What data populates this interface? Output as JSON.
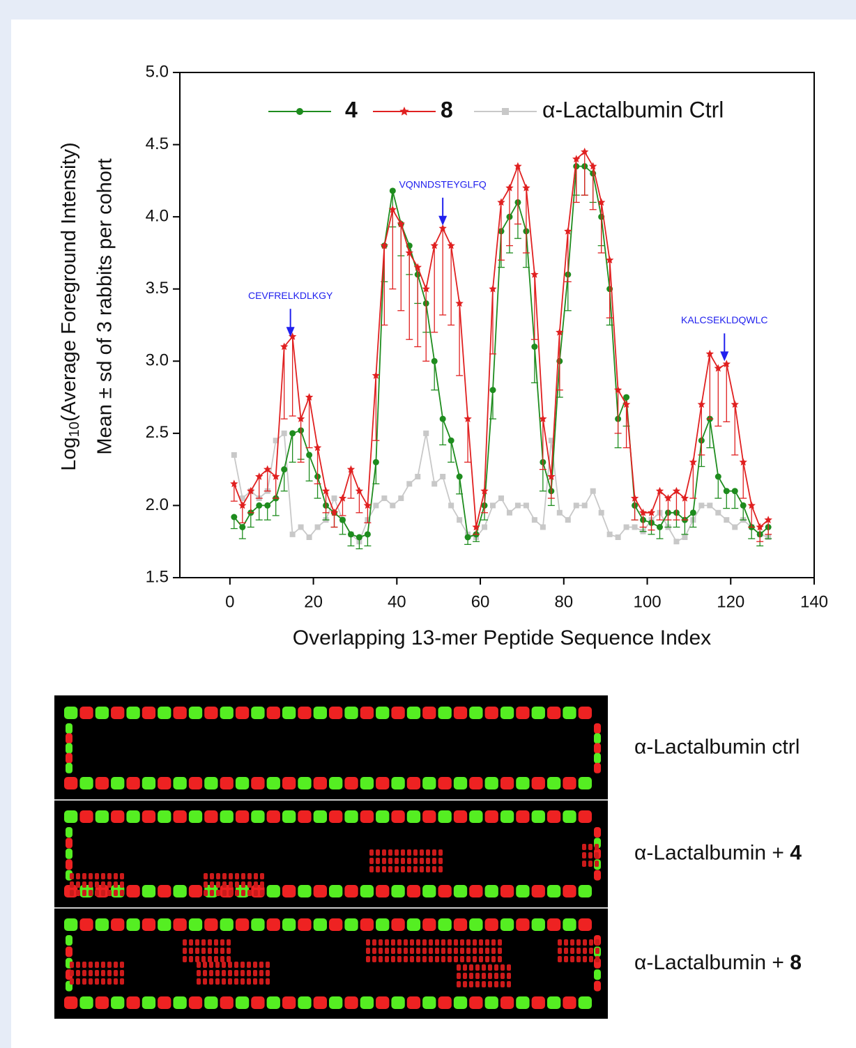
{
  "chart_data": {
    "type": "line",
    "ylabel": [
      "Log",
      "10",
      "(Average Foreground Intensity)"
    ],
    "ylabel2": "Mean ± sd of 3 rabbits per cohort",
    "xlabel": "Overlapping 13-mer Peptide Sequence Index",
    "xlim": [
      -12,
      140
    ],
    "ylim": [
      1.5,
      5.0
    ],
    "xticks": [
      0,
      20,
      40,
      60,
      80,
      100,
      120,
      140
    ],
    "yticks": [
      1.5,
      {
        "value": 2,
        "label": "2.0"
      },
      2.5,
      {
        "value": 3,
        "label": "3.0"
      },
      3.5,
      {
        "value": 4,
        "label": "4.0"
      },
      4.5,
      {
        "value": 5,
        "label": "5.0"
      }
    ],
    "x": [
      1,
      3,
      5,
      7,
      9,
      11,
      13,
      15,
      17,
      19,
      21,
      23,
      25,
      27,
      29,
      31,
      33,
      35,
      37,
      39,
      41,
      43,
      45,
      47,
      49,
      51,
      53,
      55,
      57,
      59,
      61,
      63,
      65,
      67,
      69,
      71,
      73,
      75,
      77,
      79,
      81,
      83,
      85,
      87,
      89,
      91,
      93,
      95,
      97,
      99,
      101,
      103,
      105,
      107,
      109,
      111,
      113,
      115,
      117,
      119,
      121,
      123,
      125,
      127,
      129
    ],
    "series": [
      {
        "name": "4",
        "color": "#1e8c1e",
        "marker": "circle",
        "values": [
          1.92,
          1.85,
          1.95,
          2.0,
          2.0,
          2.05,
          2.25,
          2.5,
          2.52,
          2.35,
          2.2,
          2.0,
          1.95,
          1.9,
          1.8,
          1.78,
          1.8,
          2.3,
          3.8,
          4.18,
          3.95,
          3.8,
          3.6,
          3.4,
          3.0,
          2.6,
          2.45,
          2.2,
          1.78,
          1.8,
          2.0,
          2.8,
          3.9,
          4.0,
          4.1,
          3.9,
          3.1,
          2.3,
          2.1,
          3.0,
          3.6,
          4.35,
          4.35,
          4.3,
          4.0,
          3.5,
          2.6,
          2.75,
          2.0,
          1.9,
          1.88,
          1.85,
          1.95,
          1.95,
          1.9,
          1.95,
          2.45,
          2.6,
          2.2,
          2.1,
          2.1,
          2.0,
          1.85,
          1.8,
          1.85
        ],
        "errors": [
          0.08,
          0.08,
          0.1,
          0.1,
          0.1,
          0.12,
          0.15,
          0.2,
          0.2,
          0.18,
          0.15,
          0.1,
          0.1,
          0.1,
          0.08,
          0.08,
          0.08,
          0.15,
          0.25,
          0.25,
          0.22,
          0.2,
          0.2,
          0.2,
          0.2,
          0.18,
          0.15,
          0.12,
          0.05,
          0.05,
          0.1,
          0.2,
          0.25,
          0.25,
          0.25,
          0.25,
          0.25,
          0.2,
          0.1,
          0.25,
          0.25,
          0.2,
          0.2,
          0.2,
          0.2,
          0.25,
          0.2,
          0.2,
          0.1,
          0.08,
          0.08,
          0.08,
          0.1,
          0.1,
          0.1,
          0.1,
          0.18,
          0.2,
          0.15,
          0.12,
          0.12,
          0.1,
          0.08,
          0.08,
          0.08
        ]
      },
      {
        "name": "8",
        "color": "#e02020",
        "marker": "star",
        "values": [
          2.15,
          2.0,
          2.1,
          2.2,
          2.25,
          2.2,
          3.1,
          3.17,
          2.6,
          2.75,
          2.4,
          2.1,
          1.95,
          2.05,
          2.25,
          2.1,
          2.0,
          2.9,
          3.8,
          4.05,
          3.95,
          3.75,
          3.65,
          3.5,
          3.8,
          3.92,
          3.8,
          3.4,
          2.6,
          1.85,
          2.1,
          3.5,
          4.1,
          4.2,
          4.35,
          4.2,
          3.6,
          2.6,
          2.2,
          3.2,
          3.9,
          4.4,
          4.45,
          4.35,
          4.1,
          3.7,
          2.8,
          2.7,
          2.05,
          1.95,
          1.95,
          2.1,
          2.05,
          2.1,
          2.05,
          2.3,
          2.7,
          3.05,
          2.95,
          2.98,
          2.7,
          2.3,
          2.0,
          1.85,
          1.9
        ],
        "errors": [
          0.12,
          0.12,
          0.15,
          0.15,
          0.15,
          0.15,
          0.5,
          0.55,
          0.3,
          0.35,
          0.25,
          0.15,
          0.1,
          0.12,
          0.2,
          0.15,
          0.12,
          0.45,
          0.55,
          0.55,
          0.6,
          0.6,
          0.55,
          0.5,
          0.6,
          0.6,
          0.55,
          0.5,
          0.3,
          0.05,
          0.15,
          0.45,
          0.4,
          0.4,
          0.4,
          0.45,
          0.45,
          0.35,
          0.15,
          0.4,
          0.35,
          0.3,
          0.3,
          0.3,
          0.35,
          0.4,
          0.3,
          0.3,
          0.15,
          0.1,
          0.12,
          0.2,
          0.15,
          0.2,
          0.15,
          0.25,
          0.35,
          0.45,
          0.4,
          0.4,
          0.35,
          0.25,
          0.15,
          0.1,
          0.1
        ]
      },
      {
        "name": "α-Lactalbumin Ctrl",
        "color": "#c8c8c8",
        "marker": "square",
        "values": [
          2.35,
          2.05,
          2.1,
          2.05,
          2.1,
          2.45,
          2.5,
          1.8,
          1.85,
          1.78,
          1.85,
          1.9,
          2.05,
          1.9,
          1.8,
          1.75,
          1.9,
          2.0,
          2.05,
          2.0,
          2.05,
          2.15,
          2.2,
          2.5,
          2.15,
          2.2,
          2.0,
          1.9,
          1.8,
          1.78,
          1.85,
          2.0,
          2.05,
          1.95,
          2.0,
          2.0,
          1.9,
          1.85,
          2.45,
          1.95,
          1.9,
          2.0,
          2.0,
          2.1,
          1.95,
          1.8,
          1.78,
          1.85,
          1.85,
          1.82,
          1.9,
          1.95,
          1.85,
          1.75,
          1.78,
          1.9,
          2.0,
          2.0,
          1.95,
          1.9,
          1.85,
          1.9,
          1.85,
          1.8,
          1.78
        ]
      }
    ],
    "annotations": [
      {
        "text": "CEVFRELKDLKGY",
        "x": 14.5,
        "y": 3.15
      },
      {
        "text": "VQNNDSTEYGLFQ",
        "x": 51,
        "y": 3.92
      },
      {
        "text": "KALCSEKLDQWLC",
        "x": 118.5,
        "y": 2.98
      }
    ]
  },
  "array_panels": [
    {
      "label": "α-Lactalbumin ctrl"
    },
    {
      "label": "α-Lactalbumin + ",
      "label_bold": "4"
    },
    {
      "label": "α-Lactalbumin + ",
      "label_bold": "8"
    }
  ]
}
